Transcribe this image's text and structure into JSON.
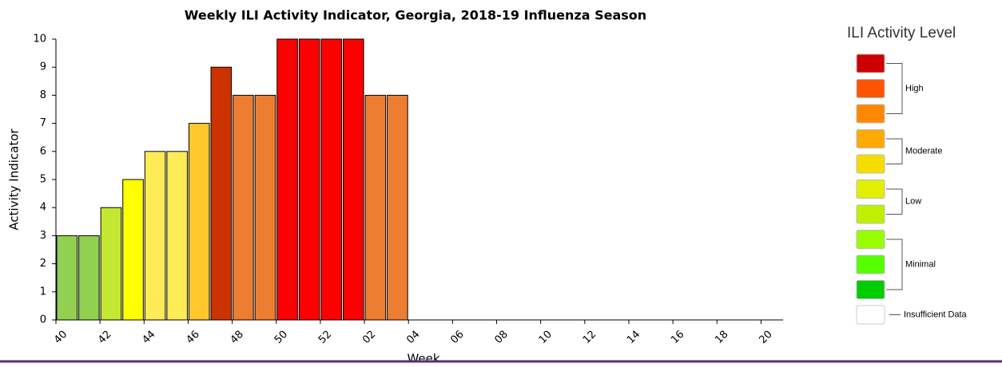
{
  "chart_data": {
    "type": "bar",
    "title": "Weekly ILI Activity Indicator, Georgia, 2018-19 Influenza Season",
    "x_label": "Week",
    "y_label": "Activity Indicator",
    "categories": [
      "40",
      null,
      "42",
      null,
      "44",
      null,
      "46",
      null,
      "48",
      null,
      "50",
      null,
      "52",
      null,
      "02",
      null,
      "04",
      null,
      "06",
      null,
      "08",
      null,
      "10",
      null,
      "12",
      null,
      "14",
      null,
      "16",
      null,
      "18",
      null,
      "20"
    ],
    "values": [
      3,
      3,
      4,
      5,
      6,
      6,
      7,
      9,
      8,
      8,
      10,
      10,
      10,
      10,
      8,
      8,
      null,
      null,
      null,
      null,
      null,
      null,
      null,
      null,
      null,
      null,
      null,
      null,
      null,
      null,
      null,
      null,
      null
    ],
    "colors": [
      "#92d050",
      "#92d050",
      "#c4e832",
      "#ffff00",
      "#ffeb55",
      "#ffeb55",
      "#ffc72c",
      "#cc3300",
      "#ed7d31",
      "#ed7d31",
      "#ff0000",
      "#ff0000",
      "#ff0000",
      "#ff0000",
      "#ed7d31",
      "#ed7d31",
      null,
      null,
      null,
      null,
      null,
      null,
      null,
      null,
      null,
      null,
      null,
      null,
      null,
      null,
      null,
      null,
      null
    ],
    "ylim": [
      0,
      10
    ],
    "yticks": [
      0,
      1,
      2,
      3,
      4,
      5,
      6,
      7,
      8,
      9,
      10
    ],
    "legend": {
      "title": "ILI Activity Level",
      "colors": [
        "#cc0000",
        "#ff5500",
        "#ff8800",
        "#ffaa00",
        "#f5dd00",
        "#e0f000",
        "#c0f000",
        "#99ff00",
        "#55ff00",
        "#00cc00"
      ],
      "groups": [
        "High",
        "Moderate",
        "Low",
        "Minimal"
      ],
      "insufficient": "Insufficient Data"
    }
  }
}
